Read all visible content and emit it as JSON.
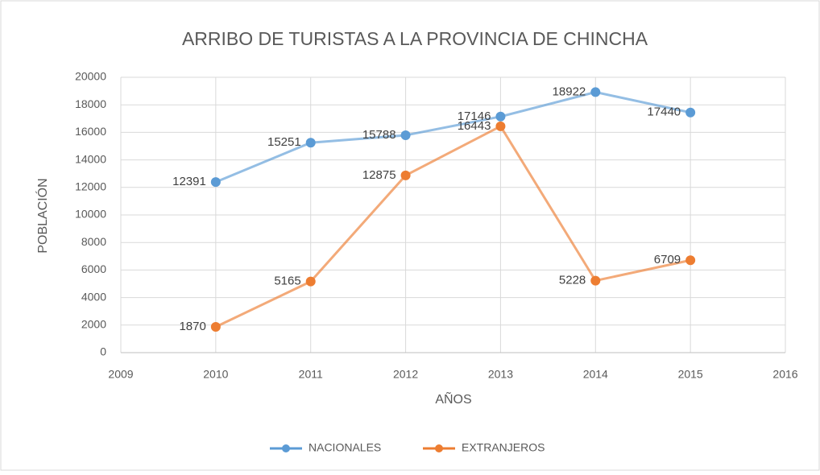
{
  "chart_data": {
    "type": "line",
    "title": "ARRIBO DE TURISTAS A LA PROVINCIA DE CHINCHA",
    "x_label": "AÑOS",
    "y_label": "POBLACIÓN",
    "x": [
      2010,
      2011,
      2012,
      2013,
      2014,
      2015
    ],
    "series": [
      {
        "name": "NACIONALES",
        "color": "#5b9bd5",
        "values": [
          12391,
          15251,
          15788,
          17146,
          18922,
          17440
        ]
      },
      {
        "name": "EXTRANJEROS",
        "color": "#ed7d31",
        "values": [
          1870,
          5165,
          12875,
          16443,
          5228,
          6709
        ]
      }
    ],
    "xlim": [
      2009,
      2016
    ],
    "xticks": [
      2009,
      2010,
      2011,
      2012,
      2013,
      2014,
      2015,
      2016
    ],
    "ylim": [
      0,
      20000
    ],
    "yticks": [
      0,
      2000,
      4000,
      6000,
      8000,
      10000,
      12000,
      14000,
      16000,
      18000,
      20000
    ],
    "grid": true,
    "legend": "bottom"
  }
}
